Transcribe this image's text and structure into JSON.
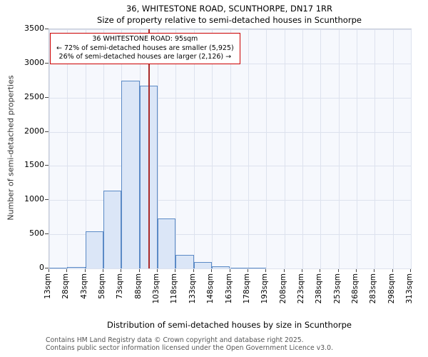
{
  "title": "36, WHITESTONE ROAD, SCUNTHORPE, DN17 1RR",
  "subtitle": "Size of property relative to semi-detached houses in Scunthorpe",
  "annotation": {
    "line1": "36 WHITESTONE ROAD: 95sqm",
    "line2": "← 72% of semi-detached houses are smaller (5,925)",
    "line3": "26% of semi-detached houses are larger (2,126) →",
    "border_color": "#cc0000"
  },
  "footer": {
    "line1": "Contains HM Land Registry data © Crown copyright and database right 2025.",
    "line2": "Contains public sector information licensed under the Open Government Licence v3.0."
  },
  "chart_data": {
    "type": "bar",
    "title": "36, WHITESTONE ROAD, SCUNTHORPE, DN17 1RR — Size of property relative to semi-detached houses in Scunthorpe",
    "xlabel": "Distribution of semi-detached houses by size in Scunthorpe",
    "ylabel": "Number of semi-detached properties",
    "ylim": [
      0,
      3500
    ],
    "ytick_step": 500,
    "grid": true,
    "bin_edges_sqm": [
      13,
      28,
      43,
      58,
      73,
      88,
      103,
      118,
      133,
      148,
      163,
      178,
      193,
      208,
      223,
      238,
      253,
      268,
      283,
      298,
      313
    ],
    "categories": [
      "13sqm",
      "28sqm",
      "43sqm",
      "58sqm",
      "73sqm",
      "88sqm",
      "103sqm",
      "118sqm",
      "133sqm",
      "148sqm",
      "163sqm",
      "178sqm",
      "193sqm",
      "208sqm",
      "223sqm",
      "238sqm",
      "253sqm",
      "268sqm",
      "283sqm",
      "298sqm",
      "313sqm"
    ],
    "values": [
      5,
      25,
      540,
      1140,
      2750,
      2670,
      730,
      200,
      90,
      30,
      15,
      10,
      0,
      0,
      0,
      0,
      0,
      0,
      0,
      0
    ],
    "marker_value_sqm": 95,
    "marker_color": "#a82a2a",
    "bar_fill": "#dbe6f7",
    "bar_border": "#5b8ac6"
  }
}
